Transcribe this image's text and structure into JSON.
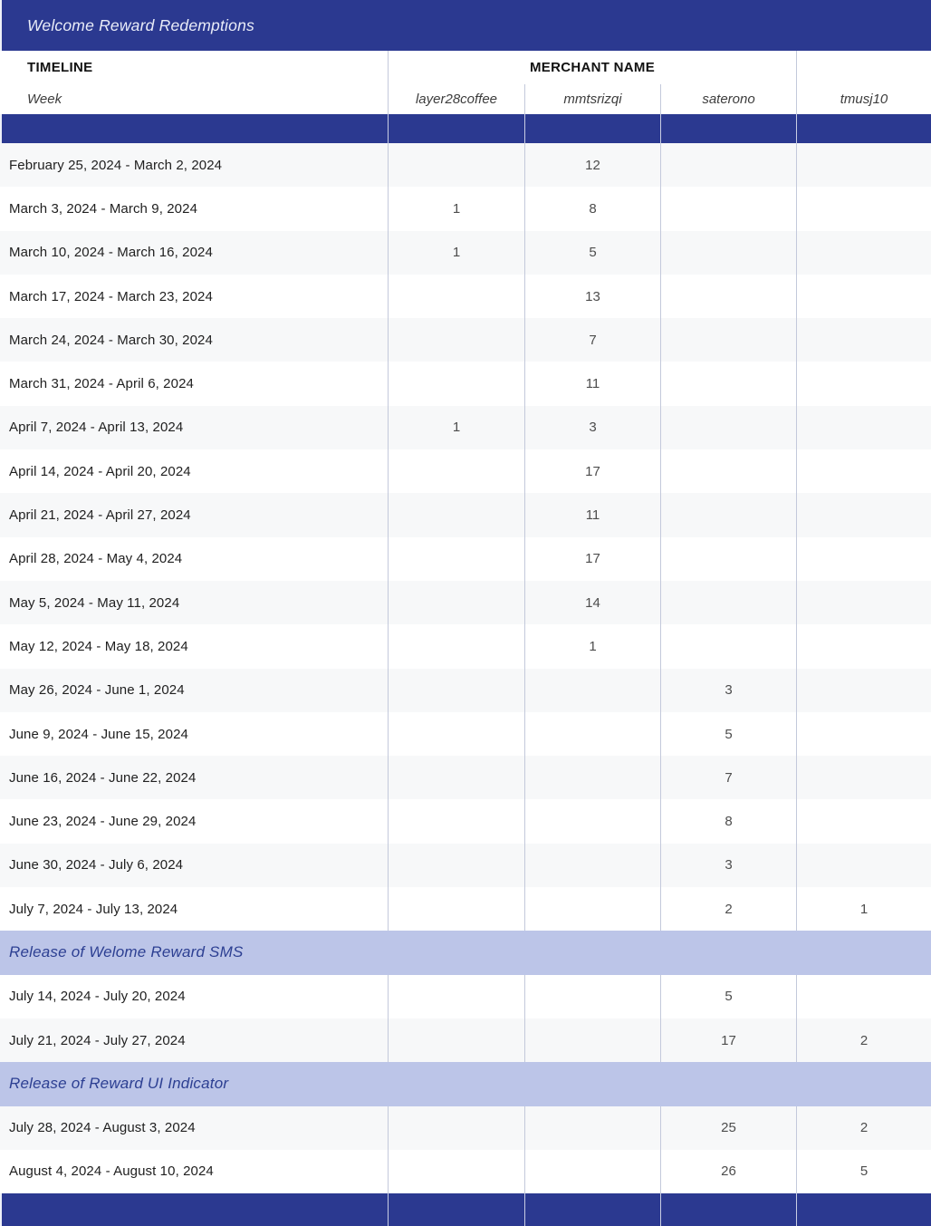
{
  "title": "Welcome Reward Redemptions",
  "colors": {
    "navy": "#2b3990",
    "band_background": "#bcc5e8",
    "band_text": "#2c3f92",
    "divider": "#c3c9db",
    "alt_row": "#f7f8f9",
    "title_text": "#e9ecf8"
  },
  "table": {
    "timeline_header": "TIMELINE",
    "merchant_group_header": "MERCHANT NAME",
    "week_label": "Week",
    "merchants": [
      "layer28coffee",
      "mmtsrizqi",
      "saterono",
      "tmusj10"
    ],
    "rows": [
      {
        "type": "data",
        "week": "February 25, 2024 - March 2, 2024",
        "values": [
          "",
          "12",
          "",
          ""
        ]
      },
      {
        "type": "data",
        "week": "March 3, 2024 - March 9, 2024",
        "values": [
          "1",
          "8",
          "",
          ""
        ]
      },
      {
        "type": "data",
        "week": "March 10, 2024 - March 16, 2024",
        "values": [
          "1",
          "5",
          "",
          ""
        ]
      },
      {
        "type": "data",
        "week": "March 17, 2024 - March 23, 2024",
        "values": [
          "",
          "13",
          "",
          ""
        ]
      },
      {
        "type": "data",
        "week": "March 24, 2024 - March 30, 2024",
        "values": [
          "",
          "7",
          "",
          ""
        ]
      },
      {
        "type": "data",
        "week": "March 31, 2024 - April 6, 2024",
        "values": [
          "",
          "11",
          "",
          ""
        ]
      },
      {
        "type": "data",
        "week": "April 7, 2024 - April 13, 2024",
        "values": [
          "1",
          "3",
          "",
          ""
        ]
      },
      {
        "type": "data",
        "week": "April 14, 2024 - April 20, 2024",
        "values": [
          "",
          "17",
          "",
          ""
        ]
      },
      {
        "type": "data",
        "week": "April 21, 2024 - April 27, 2024",
        "values": [
          "",
          "11",
          "",
          ""
        ]
      },
      {
        "type": "data",
        "week": "April 28, 2024 - May 4, 2024",
        "values": [
          "",
          "17",
          "",
          ""
        ]
      },
      {
        "type": "data",
        "week": "May 5, 2024 - May 11, 2024",
        "values": [
          "",
          "14",
          "",
          ""
        ]
      },
      {
        "type": "data",
        "week": "May 12, 2024 - May 18, 2024",
        "values": [
          "",
          "1",
          "",
          ""
        ]
      },
      {
        "type": "data",
        "week": "May 26, 2024 - June 1, 2024",
        "values": [
          "",
          "",
          "3",
          ""
        ]
      },
      {
        "type": "data",
        "week": "June 9, 2024 - June 15, 2024",
        "values": [
          "",
          "",
          "5",
          ""
        ]
      },
      {
        "type": "data",
        "week": "June 16, 2024 - June 22, 2024",
        "values": [
          "",
          "",
          "7",
          ""
        ]
      },
      {
        "type": "data",
        "week": "June 23, 2024 - June 29, 2024",
        "values": [
          "",
          "",
          "8",
          ""
        ]
      },
      {
        "type": "data",
        "week": "June 30, 2024 - July 6, 2024",
        "values": [
          "",
          "",
          "3",
          ""
        ]
      },
      {
        "type": "data",
        "week": "July 7, 2024 - July 13, 2024",
        "values": [
          "",
          "",
          "2",
          "1"
        ]
      },
      {
        "type": "band",
        "label": "Release of Welome Reward SMS"
      },
      {
        "type": "data",
        "week": "July 14, 2024 - July 20, 2024",
        "values": [
          "",
          "",
          "5",
          ""
        ]
      },
      {
        "type": "data",
        "week": "July 21, 2024 - July 27, 2024",
        "values": [
          "",
          "",
          "17",
          "2"
        ]
      },
      {
        "type": "band",
        "label": "Release of Reward UI Indicator"
      },
      {
        "type": "data",
        "week": "July 28, 2024 - August 3, 2024",
        "values": [
          "",
          "",
          "25",
          "2"
        ]
      },
      {
        "type": "data",
        "week": "August 4, 2024 - August 10, 2024",
        "values": [
          "",
          "",
          "26",
          "5"
        ]
      }
    ]
  }
}
